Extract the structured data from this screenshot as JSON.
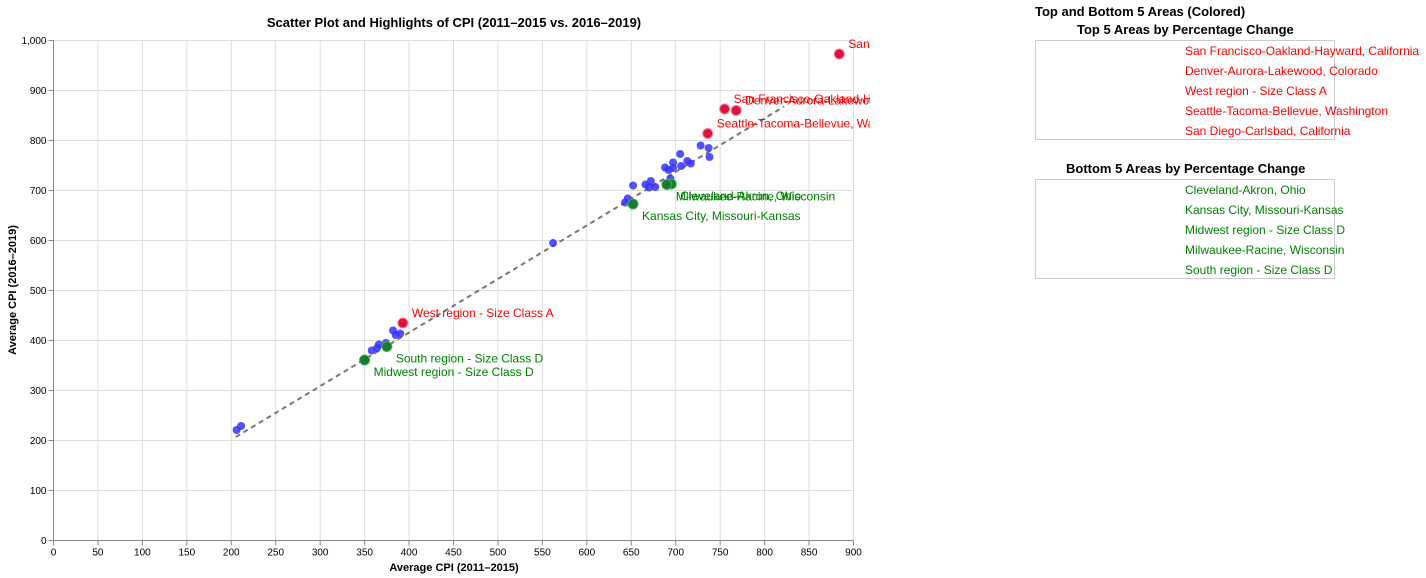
{
  "chart_data": {
    "type": "scatter",
    "title": "Scatter Plot and Highlights of CPI (2011–2015 vs. 2016–2019)",
    "xlabel": "Average CPI (2011–2015)",
    "ylabel": "Average CPI (2016–2019)",
    "xlim": [
      0,
      900
    ],
    "ylim": [
      0,
      1000
    ],
    "xticks": [
      0,
      50,
      100,
      150,
      200,
      250,
      300,
      350,
      400,
      450,
      500,
      550,
      600,
      650,
      700,
      750,
      800,
      850,
      900
    ],
    "yticks": [
      0,
      100,
      200,
      300,
      400,
      500,
      600,
      700,
      800,
      900,
      1000
    ],
    "ytick_labels": [
      "0",
      "100",
      "200",
      "300",
      "400",
      "500",
      "600",
      "700",
      "800",
      "900",
      "1,000"
    ],
    "grid": true,
    "trendline": {
      "style": "dashed",
      "color": "#777777",
      "from": [
        205,
        207
      ],
      "to": [
        822,
        868
      ]
    },
    "colors": {
      "other": "#3333ff",
      "top": "#dc143c",
      "bottom": "#1a7a2e",
      "top_text": "#ff0000",
      "bottom_text": "#008000"
    },
    "other_points": [
      [
        206,
        221
      ],
      [
        211,
        229
      ],
      [
        358,
        380
      ],
      [
        364,
        385
      ],
      [
        366,
        392
      ],
      [
        374,
        395
      ],
      [
        382,
        420
      ],
      [
        385,
        411
      ],
      [
        390,
        414
      ],
      [
        562,
        595
      ],
      [
        643,
        676
      ],
      [
        646,
        684
      ],
      [
        652,
        710
      ],
      [
        666,
        712
      ],
      [
        670,
        706
      ],
      [
        672,
        719
      ],
      [
        677,
        707
      ],
      [
        688,
        746
      ],
      [
        692,
        741
      ],
      [
        694,
        724
      ],
      [
        697,
        756
      ],
      [
        697,
        745
      ],
      [
        705,
        773
      ],
      [
        706,
        749
      ],
      [
        713,
        759
      ],
      [
        717,
        754
      ],
      [
        728,
        790
      ],
      [
        737,
        785
      ],
      [
        738,
        767
      ]
    ],
    "top_points": [
      {
        "label": "San Diego-Carlsbad, California",
        "x": 884,
        "y": 973
      },
      {
        "label": "San Francisco-Oakland-Hayward, California",
        "x": 755,
        "y": 863
      },
      {
        "label": "Denver-Aurora-Lakewood, Colorado",
        "x": 768,
        "y": 860
      },
      {
        "label": "Seattle-Tacoma-Bellevue, Washington",
        "x": 736,
        "y": 814
      },
      {
        "label": "West region - Size Class A",
        "x": 393,
        "y": 435
      }
    ],
    "bottom_points": [
      {
        "label": "Cleveland-Akron, Ohio",
        "x": 695,
        "y": 713
      },
      {
        "label": "Milwaukee-Racine, Wisconsin",
        "x": 690,
        "y": 712
      },
      {
        "label": "Kansas City, Missouri-Kansas",
        "x": 652,
        "y": 673
      },
      {
        "label": "South region - Size Class D",
        "x": 375,
        "y": 388
      },
      {
        "label": "Midwest region - Size Class D",
        "x": 350,
        "y": 361
      }
    ]
  },
  "panel": {
    "title": "Top and Bottom 5 Areas (Colored)",
    "top_heading": "Top 5 Areas by Percentage Change",
    "top_items": [
      "San Francisco-Oakland-Hayward, California",
      "Denver-Aurora-Lakewood, Colorado",
      "West region - Size Class A",
      "Seattle-Tacoma-Bellevue, Washington",
      "San Diego-Carlsbad, California"
    ],
    "bottom_heading": "Bottom 5 Areas by Percentage Change",
    "bottom_items": [
      "Cleveland-Akron, Ohio",
      "Kansas City, Missouri-Kansas",
      "Midwest region - Size Class D",
      "Milwaukee-Racine, Wisconsin",
      "South region - Size Class D"
    ]
  }
}
